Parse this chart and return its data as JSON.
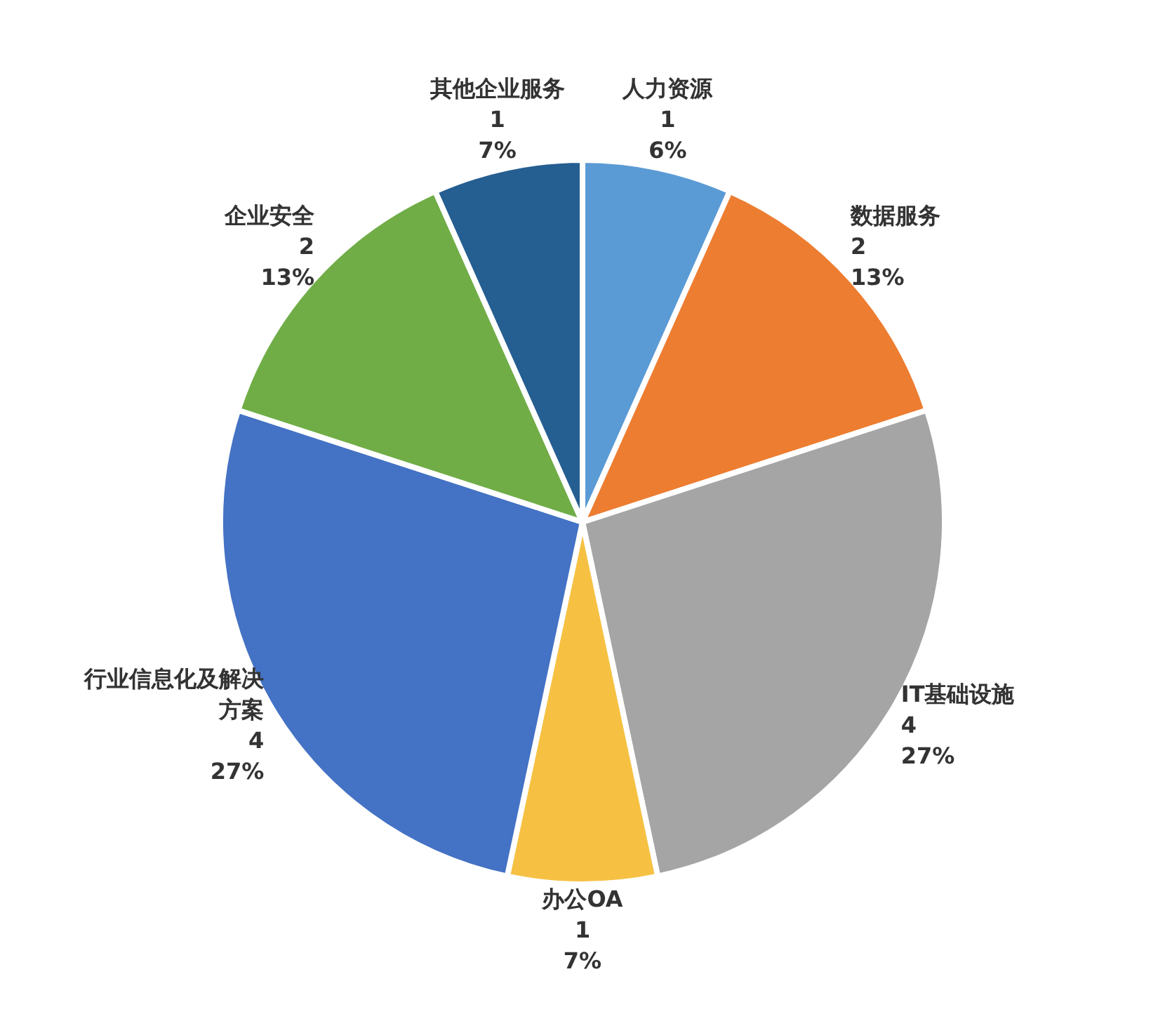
{
  "chart_data": {
    "type": "pie",
    "categories": [
      "人力资源",
      "数据服务",
      "IT基础设施",
      "办公OA",
      "行业信息化及解决方案",
      "企业安全",
      "其他企业服务"
    ],
    "values": [
      1,
      2,
      4,
      1,
      4,
      2,
      1
    ],
    "colors": [
      "#5b9bd5",
      "#ed7d31",
      "#a5a5a5",
      "#f6c143",
      "#4472c4",
      "#70ad47",
      "#255e91"
    ],
    "value_labels": [
      "1\n6%",
      "2\n13%",
      "4\n27%",
      "1\n7%",
      "4\n27%",
      "2\n13%",
      "1\n7%"
    ],
    "legend": false
  }
}
